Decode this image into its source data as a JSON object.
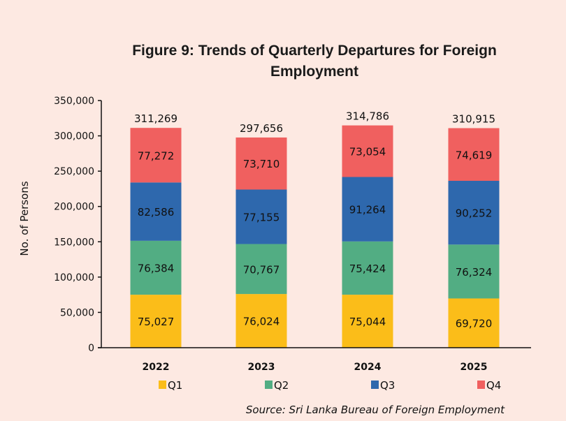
{
  "chart_data": {
    "type": "bar",
    "stacked": true,
    "title": "Figure 9: Trends of Quarterly Departures for Foreign Employment",
    "xlabel": "",
    "ylabel": "No. of Persons",
    "ylim": [
      0,
      350000
    ],
    "yticks": [
      0,
      50000,
      100000,
      150000,
      200000,
      250000,
      300000,
      350000
    ],
    "ytick_labels": [
      "0",
      "50,000",
      "100,000",
      "150,000",
      "200,000",
      "250,000",
      "300,000",
      "350,000"
    ],
    "grid": false,
    "categories": [
      "2022",
      "2023",
      "2024",
      "2025"
    ],
    "series": [
      {
        "name": "Q1",
        "color": "#fbbd19",
        "values": [
          75027,
          76024,
          75044,
          69720
        ],
        "labels": [
          "75,027",
          "76,024",
          "75,044",
          "69,720"
        ]
      },
      {
        "name": "Q2",
        "color": "#52ad83",
        "values": [
          76384,
          70767,
          75424,
          76324
        ],
        "labels": [
          "76,384",
          "70,767",
          "75,424",
          "76,324"
        ]
      },
      {
        "name": "Q3",
        "color": "#2e68ad",
        "values": [
          82586,
          77155,
          91264,
          90252
        ],
        "labels": [
          "82,586",
          "77,155",
          "91,264",
          "90,252"
        ]
      },
      {
        "name": "Q4",
        "color": "#f0605f",
        "values": [
          77272,
          73710,
          73054,
          74619
        ],
        "labels": [
          "77,272",
          "73,710",
          "73,054",
          "74,619"
        ]
      }
    ],
    "totals": [
      311269,
      297656,
      314786,
      310915
    ],
    "total_labels": [
      "311,269",
      "297,656",
      "314,786",
      "310,915"
    ],
    "legend_position": "bottom",
    "source": "Source: Sri Lanka Bureau of Foreign Employment"
  }
}
